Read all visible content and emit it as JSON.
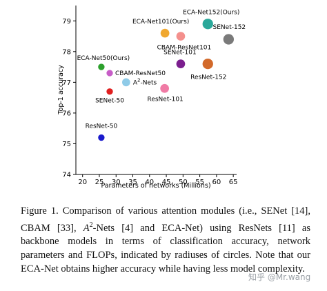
{
  "chart_data": {
    "type": "scatter",
    "xlabel": "Parameters of networks (Millions)",
    "ylabel": "Top-1 accuracy",
    "xlim": [
      18,
      66
    ],
    "ylim": [
      74,
      79.5
    ],
    "xticks": [
      20,
      25,
      30,
      35,
      40,
      45,
      50,
      55,
      60,
      65
    ],
    "yticks": [
      74,
      75,
      76,
      77,
      78,
      79
    ],
    "grid": false,
    "points": [
      {
        "label": "ResNet-50",
        "x": 25.6,
        "y": 75.2,
        "flops": 4.1,
        "color": "#1a1acc"
      },
      {
        "label": "SENet-50",
        "x": 28.1,
        "y": 76.7,
        "flops": 4.1,
        "color": "#e01f1f"
      },
      {
        "label": "ECA-Net50(Ours)",
        "x": 25.6,
        "y": 77.5,
        "flops": 4.1,
        "color": "#2ca02c"
      },
      {
        "label": "CBAM-ResNet50",
        "x": 28.1,
        "y": 77.3,
        "flops": 4.1,
        "color": "#c75dc7"
      },
      {
        "label": "A2-Nets",
        "x": 33.0,
        "y": 77.0,
        "flops": 6.5,
        "color": "#8fcbe8"
      },
      {
        "label": "ResNet-101",
        "x": 44.5,
        "y": 76.8,
        "flops": 7.8,
        "color": "#f07ba5"
      },
      {
        "label": "ECA-Net101(Ours)",
        "x": 44.6,
        "y": 78.6,
        "flops": 7.8,
        "color": "#f0a830"
      },
      {
        "label": "CBAM-ResNet101",
        "x": 49.3,
        "y": 78.5,
        "flops": 7.8,
        "color": "#f4908d"
      },
      {
        "label": "SENet-101",
        "x": 49.3,
        "y": 77.6,
        "flops": 7.8,
        "color": "#7b1e8e"
      },
      {
        "label": "ECA-Net152(Ours)",
        "x": 57.4,
        "y": 78.9,
        "flops": 11.5,
        "color": "#2aa89a"
      },
      {
        "label": "ResNet-152",
        "x": 57.4,
        "y": 77.6,
        "flops": 11.5,
        "color": "#d2692a"
      },
      {
        "label": "SENet-152",
        "x": 63.6,
        "y": 78.4,
        "flops": 11.5,
        "color": "#7a7a7a"
      }
    ]
  },
  "caption": {
    "figure_label": "Figure 1.",
    "text_1": " Comparison of various attention modules (i.e., SENet [14], CBAM [33], ",
    "a2_base": "A",
    "a2_sup": "2",
    "text_2": "-Nets [4] and ECA-Net) using ResNets [11] as backbone models in terms of classification accuracy, network parameters and FLOPs, indicated by radiuses of circles. Note that our ECA-Net obtains higher accuracy while having less model complexity."
  },
  "watermark": "知乎 @Mr.wang"
}
